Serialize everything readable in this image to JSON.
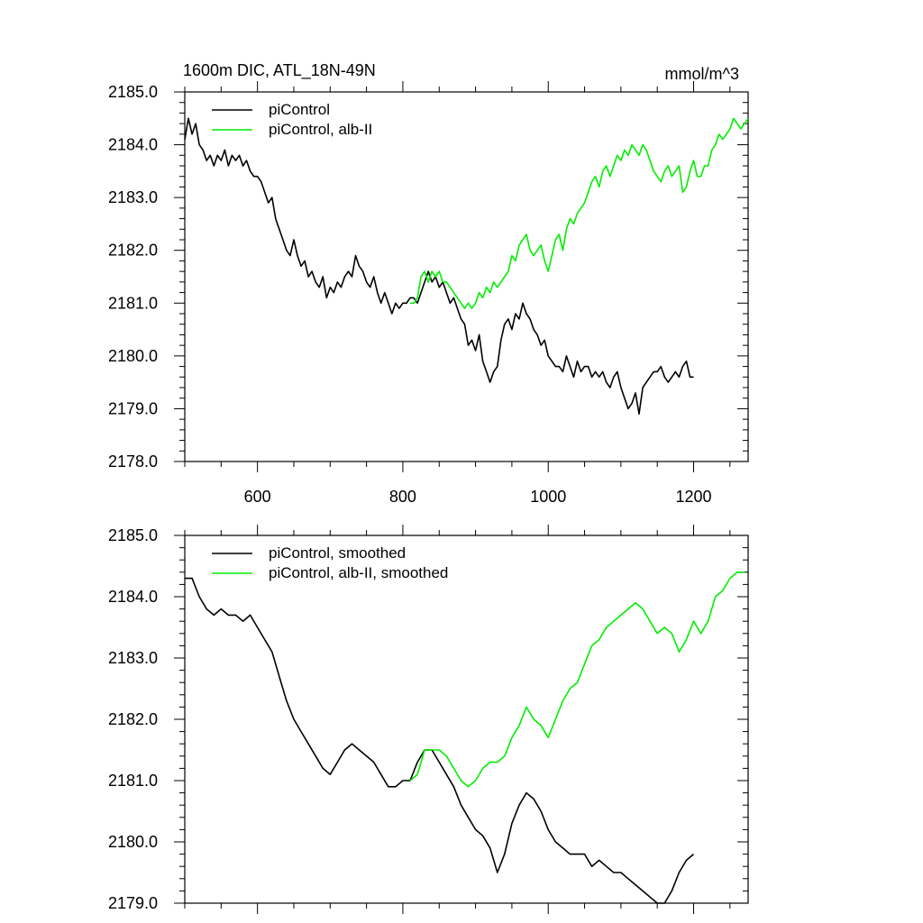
{
  "figure": {
    "title_left": "1600m DIC, ATL_18N-49N",
    "title_right": "mmol/m^3"
  },
  "colors": {
    "control": "#000000",
    "alb": "#00ee00"
  },
  "chart_data": [
    {
      "type": "line",
      "title": "1600m DIC, ATL_18N-49N",
      "units": "mmol/m^3",
      "xlim": [
        500,
        1275
      ],
      "ylim": [
        2178.0,
        2185.0
      ],
      "xticks": [
        600,
        800,
        1000,
        1200
      ],
      "xtick_labels": [
        "600",
        "800",
        "1000",
        "1200"
      ],
      "yticks": [
        2178.0,
        2179.0,
        2180.0,
        2181.0,
        2182.0,
        2183.0,
        2184.0,
        2185.0
      ],
      "ytick_labels": [
        "2178.0",
        "2179.0",
        "2180.0",
        "2181.0",
        "2182.0",
        "2183.0",
        "2184.0",
        "2185.0"
      ],
      "grid": false,
      "legend": "top-left",
      "series": [
        {
          "name": "piControl",
          "color": "#000000",
          "x": [
            500,
            505,
            510,
            515,
            520,
            525,
            530,
            535,
            540,
            545,
            550,
            555,
            560,
            565,
            570,
            575,
            580,
            585,
            590,
            595,
            600,
            605,
            610,
            615,
            620,
            625,
            630,
            635,
            640,
            645,
            650,
            655,
            660,
            665,
            670,
            675,
            680,
            685,
            690,
            695,
            700,
            705,
            710,
            715,
            720,
            725,
            730,
            735,
            740,
            745,
            750,
            755,
            760,
            765,
            770,
            775,
            780,
            785,
            790,
            795,
            800,
            805,
            810,
            815,
            820,
            825,
            830,
            835,
            840,
            845,
            850,
            855,
            860,
            865,
            870,
            875,
            880,
            885,
            890,
            895,
            900,
            905,
            910,
            915,
            920,
            925,
            930,
            935,
            940,
            945,
            950,
            955,
            960,
            965,
            970,
            975,
            980,
            985,
            990,
            995,
            1000,
            1005,
            1010,
            1015,
            1020,
            1025,
            1030,
            1035,
            1040,
            1045,
            1050,
            1055,
            1060,
            1065,
            1070,
            1075,
            1080,
            1085,
            1090,
            1095,
            1100,
            1105,
            1110,
            1115,
            1120,
            1125,
            1130,
            1135,
            1140,
            1145,
            1150,
            1155,
            1160,
            1165,
            1170,
            1175,
            1180,
            1185,
            1190,
            1195,
            1200
          ],
          "y": [
            2184.1,
            2184.5,
            2184.2,
            2184.4,
            2184.0,
            2183.9,
            2183.7,
            2183.8,
            2183.6,
            2183.8,
            2183.7,
            2183.9,
            2183.6,
            2183.8,
            2183.7,
            2183.8,
            2183.6,
            2183.7,
            2183.5,
            2183.4,
            2183.4,
            2183.3,
            2183.1,
            2182.9,
            2183.0,
            2182.6,
            2182.4,
            2182.2,
            2182.0,
            2181.9,
            2182.2,
            2181.9,
            2181.7,
            2181.8,
            2181.5,
            2181.6,
            2181.4,
            2181.3,
            2181.5,
            2181.1,
            2181.3,
            2181.2,
            2181.4,
            2181.3,
            2181.5,
            2181.6,
            2181.5,
            2181.9,
            2181.7,
            2181.6,
            2181.4,
            2181.3,
            2181.5,
            2181.2,
            2181.0,
            2181.2,
            2181.0,
            2180.8,
            2181.0,
            2180.9,
            2181.0,
            2181.0,
            2181.1,
            2181.1,
            2181.0,
            2181.2,
            2181.4,
            2181.6,
            2181.4,
            2181.5,
            2181.3,
            2181.4,
            2181.2,
            2181.0,
            2181.1,
            2180.9,
            2180.7,
            2180.6,
            2180.2,
            2180.3,
            2180.1,
            2180.4,
            2179.9,
            2179.7,
            2179.5,
            2179.7,
            2179.8,
            2180.3,
            2180.6,
            2180.7,
            2180.5,
            2180.8,
            2180.7,
            2181.0,
            2180.8,
            2180.7,
            2180.5,
            2180.4,
            2180.2,
            2180.3,
            2180.0,
            2179.9,
            2179.8,
            2179.8,
            2179.7,
            2180.0,
            2179.8,
            2179.6,
            2179.9,
            2179.7,
            2179.8,
            2179.8,
            2179.6,
            2179.7,
            2179.6,
            2179.7,
            2179.5,
            2179.4,
            2179.6,
            2179.7,
            2179.4,
            2179.2,
            2179.0,
            2179.1,
            2179.3,
            2178.9,
            2179.4,
            2179.5,
            2179.6,
            2179.7,
            2179.7,
            2179.8,
            2179.6,
            2179.5,
            2179.6,
            2179.7,
            2179.6,
            2179.8,
            2179.9,
            2179.6,
            2179.6
          ]
        },
        {
          "name": "piControl, alb-II",
          "color": "#00ee00",
          "x": [
            810,
            815,
            820,
            825,
            830,
            835,
            840,
            845,
            850,
            855,
            860,
            865,
            870,
            875,
            880,
            885,
            890,
            895,
            900,
            905,
            910,
            915,
            920,
            925,
            930,
            935,
            940,
            945,
            950,
            955,
            960,
            965,
            970,
            975,
            980,
            985,
            990,
            995,
            1000,
            1005,
            1010,
            1015,
            1020,
            1025,
            1030,
            1035,
            1040,
            1045,
            1050,
            1055,
            1060,
            1065,
            1070,
            1075,
            1080,
            1085,
            1090,
            1095,
            1100,
            1105,
            1110,
            1115,
            1120,
            1125,
            1130,
            1135,
            1140,
            1145,
            1150,
            1155,
            1160,
            1165,
            1170,
            1175,
            1180,
            1185,
            1190,
            1195,
            1200,
            1205,
            1210,
            1215,
            1220,
            1225,
            1230,
            1235,
            1240,
            1245,
            1250,
            1255,
            1260,
            1265,
            1270,
            1275
          ],
          "y": [
            2181.0,
            2181.0,
            2181.1,
            2181.5,
            2181.6,
            2181.4,
            2181.6,
            2181.5,
            2181.6,
            2181.4,
            2181.4,
            2181.3,
            2181.2,
            2181.1,
            2181.0,
            2180.9,
            2181.0,
            2180.9,
            2181.0,
            2181.2,
            2181.1,
            2181.3,
            2181.2,
            2181.4,
            2181.3,
            2181.4,
            2181.5,
            2181.6,
            2181.9,
            2181.8,
            2182.1,
            2182.2,
            2182.3,
            2182.0,
            2181.9,
            2182.0,
            2182.1,
            2181.8,
            2181.6,
            2181.9,
            2182.2,
            2182.3,
            2182.0,
            2182.4,
            2182.6,
            2182.5,
            2182.7,
            2182.8,
            2182.9,
            2183.1,
            2183.3,
            2183.4,
            2183.2,
            2183.5,
            2183.6,
            2183.4,
            2183.6,
            2183.8,
            2183.7,
            2183.9,
            2183.8,
            2184.0,
            2183.9,
            2183.8,
            2184.0,
            2183.9,
            2183.7,
            2183.5,
            2183.4,
            2183.3,
            2183.5,
            2183.6,
            2183.4,
            2183.5,
            2183.6,
            2183.1,
            2183.2,
            2183.5,
            2183.7,
            2183.4,
            2183.4,
            2183.6,
            2183.6,
            2183.9,
            2184.0,
            2184.2,
            2184.1,
            2184.2,
            2184.3,
            2184.5,
            2184.4,
            2184.3,
            2184.4,
            2184.5
          ]
        }
      ]
    },
    {
      "type": "line",
      "xlim": [
        500,
        1275
      ],
      "ylim": [
        2179.0,
        2185.0
      ],
      "xticks": [
        600,
        800,
        1000,
        1200
      ],
      "xtick_labels": [],
      "yticks": [
        2179.0,
        2180.0,
        2181.0,
        2182.0,
        2183.0,
        2184.0,
        2185.0
      ],
      "ytick_labels": [
        "2179.0",
        "2180.0",
        "2181.0",
        "2182.0",
        "2183.0",
        "2184.0",
        "2185.0"
      ],
      "grid": false,
      "legend": "top-left",
      "series": [
        {
          "name": "piControl, smoothed",
          "color": "#000000",
          "x": [
            500,
            510,
            520,
            530,
            540,
            550,
            560,
            570,
            580,
            590,
            600,
            610,
            620,
            630,
            640,
            650,
            660,
            670,
            680,
            690,
            700,
            710,
            720,
            730,
            740,
            750,
            760,
            770,
            780,
            790,
            800,
            810,
            820,
            830,
            840,
            850,
            860,
            870,
            880,
            890,
            900,
            910,
            920,
            930,
            940,
            950,
            960,
            970,
            980,
            990,
            1000,
            1010,
            1020,
            1030,
            1040,
            1050,
            1060,
            1070,
            1080,
            1090,
            1100,
            1110,
            1120,
            1130,
            1140,
            1150,
            1160,
            1170,
            1180,
            1190,
            1200
          ],
          "y": [
            2184.3,
            2184.3,
            2184.0,
            2183.8,
            2183.7,
            2183.8,
            2183.7,
            2183.7,
            2183.6,
            2183.7,
            2183.5,
            2183.3,
            2183.1,
            2182.7,
            2182.3,
            2182.0,
            2181.8,
            2181.6,
            2181.4,
            2181.2,
            2181.1,
            2181.3,
            2181.5,
            2181.6,
            2181.5,
            2181.4,
            2181.3,
            2181.1,
            2180.9,
            2180.9,
            2181.0,
            2181.0,
            2181.3,
            2181.5,
            2181.5,
            2181.3,
            2181.1,
            2180.9,
            2180.6,
            2180.4,
            2180.2,
            2180.1,
            2179.9,
            2179.5,
            2179.8,
            2180.3,
            2180.6,
            2180.8,
            2180.7,
            2180.5,
            2180.2,
            2180.0,
            2179.9,
            2179.8,
            2179.8,
            2179.8,
            2179.6,
            2179.7,
            2179.6,
            2179.5,
            2179.5,
            2179.4,
            2179.3,
            2179.2,
            2179.1,
            2179.0,
            2179.0,
            2179.2,
            2179.5,
            2179.7,
            2179.8
          ]
        },
        {
          "name": "piControl, alb-II, smoothed",
          "color": "#00ee00",
          "x": [
            810,
            820,
            830,
            840,
            850,
            860,
            870,
            880,
            890,
            900,
            910,
            920,
            930,
            940,
            950,
            960,
            970,
            980,
            990,
            1000,
            1010,
            1020,
            1030,
            1040,
            1050,
            1060,
            1070,
            1080,
            1090,
            1100,
            1110,
            1120,
            1130,
            1140,
            1150,
            1160,
            1170,
            1180,
            1190,
            1200,
            1210,
            1220,
            1230,
            1240,
            1250,
            1260,
            1270
          ],
          "y": [
            2181.0,
            2181.1,
            2181.5,
            2181.5,
            2181.5,
            2181.4,
            2181.2,
            2181.0,
            2180.9,
            2181.0,
            2181.2,
            2181.3,
            2181.3,
            2181.4,
            2181.7,
            2181.9,
            2182.2,
            2182.0,
            2181.9,
            2181.7,
            2182.0,
            2182.3,
            2182.5,
            2182.6,
            2182.9,
            2183.2,
            2183.3,
            2183.5,
            2183.6,
            2183.7,
            2183.8,
            2183.9,
            2183.8,
            2183.6,
            2183.4,
            2183.5,
            2183.4,
            2183.1,
            2183.3,
            2183.6,
            2183.4,
            2183.6,
            2184.0,
            2184.1,
            2184.3,
            2184.4,
            2184.4
          ]
        }
      ]
    }
  ]
}
